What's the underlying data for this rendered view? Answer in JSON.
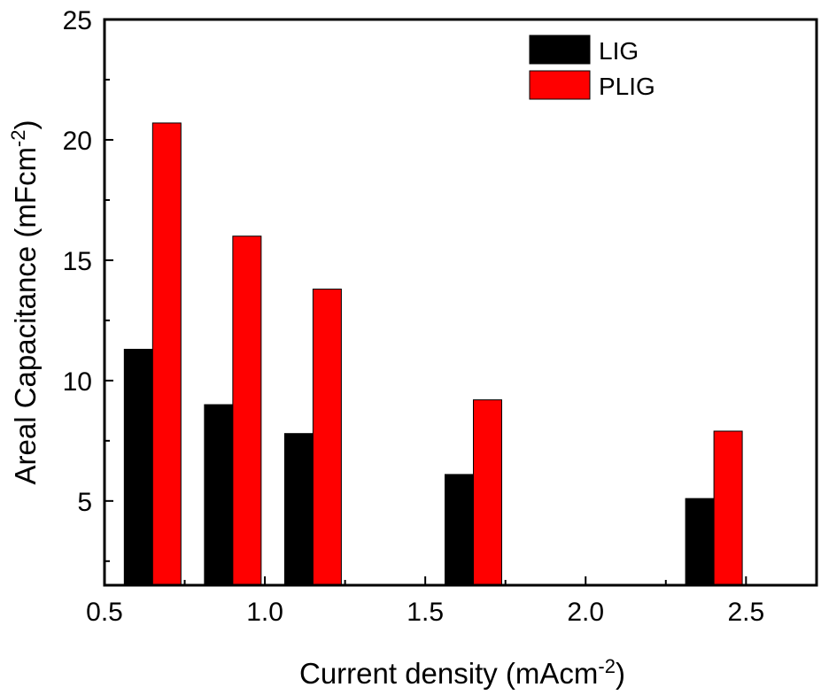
{
  "chart_data": {
    "type": "bar",
    "title": "",
    "xlabel": {
      "main": "Current density (mAcm",
      "sup": "-2",
      "end": ")"
    },
    "ylabel": {
      "main": "Areal Capacitance (mFcm",
      "sup": "-2",
      "end": ")"
    },
    "x": [
      0.65,
      0.9,
      1.15,
      1.65,
      2.4
    ],
    "xlim": [
      0.5,
      2.72
    ],
    "ylim": [
      1.5,
      25
    ],
    "xticks": [
      0.5,
      1.0,
      1.5,
      2.0,
      2.5
    ],
    "xtick_labels": [
      "0.5",
      "1.0",
      "1.5",
      "2.0",
      "2.5"
    ],
    "yticks": [
      5,
      10,
      15,
      20,
      25
    ],
    "ytick_labels": [
      "5",
      "10",
      "15",
      "20",
      "25"
    ],
    "series": [
      {
        "name": "LIG",
        "color": "#000000",
        "values": [
          11.3,
          9.0,
          7.8,
          6.1,
          5.1
        ]
      },
      {
        "name": "PLIG",
        "color": "#ff0000",
        "values": [
          20.7,
          16.0,
          13.8,
          9.2,
          7.9
        ]
      }
    ],
    "legend": "top-right",
    "grid": false
  }
}
